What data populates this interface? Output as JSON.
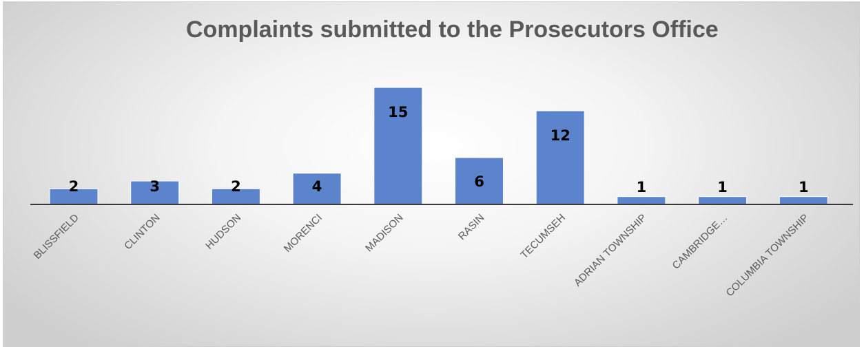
{
  "chart_data": {
    "type": "bar",
    "title": "Complaints submitted to the Prosecutors Office",
    "categories": [
      "BLISSFIELD",
      "CLINTON",
      "HUDSON",
      "MORENCI",
      "MADISON",
      "RASIN",
      "TECUMSEH",
      "ADRIAN TOWNSHIP",
      "CAMBRIDGE…",
      "COLUMBIA TOWNSHIP"
    ],
    "values": [
      2,
      3,
      2,
      4,
      15,
      6,
      12,
      1,
      1,
      1
    ],
    "data_labels": [
      "2",
      "3",
      "2",
      "4",
      "15",
      "6",
      "12",
      "1",
      "1",
      "1"
    ],
    "xlabel": "",
    "ylabel": "",
    "ylim": [
      0,
      15
    ],
    "grid": false,
    "legend": "none",
    "colors": {
      "bar": "#5b84cc",
      "bar_edge": "#ffffff",
      "axis": "#3a3a3a",
      "title": "#595959",
      "category_text": "#595959",
      "value_text": "#000000"
    }
  }
}
